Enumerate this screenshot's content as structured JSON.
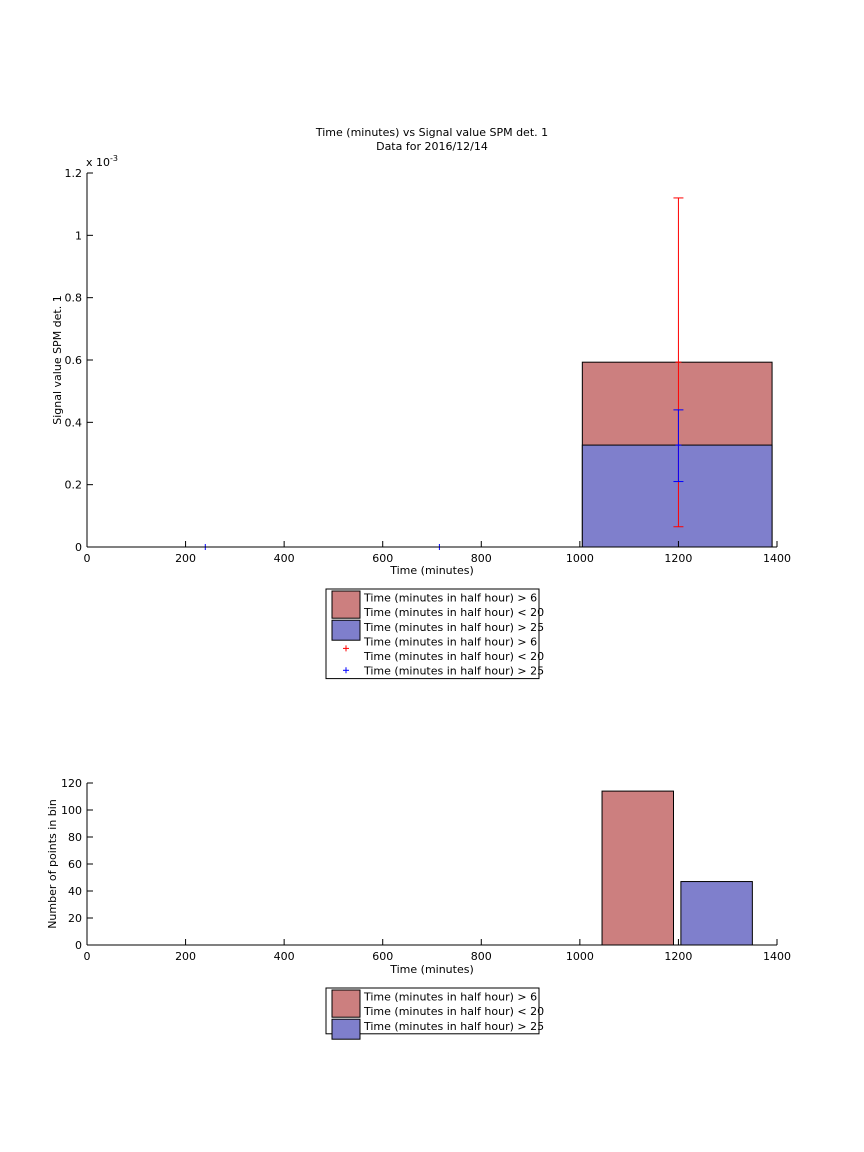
{
  "chart_data": [
    {
      "type": "bar",
      "title": "Time (minutes) vs Signal value SPM det. 1",
      "subtitle": "Data for 2016/12/14",
      "xlabel": "Time (minutes)",
      "ylabel": "Signal value SPM det. 1",
      "y_exponent_label": "x 10",
      "y_exponent_power": "-3",
      "xlim": [
        0,
        1400
      ],
      "ylim": [
        0,
        0.0012
      ],
      "xticks": [
        "0",
        "200",
        "400",
        "600",
        "800",
        "1000",
        "1200",
        "1400"
      ],
      "yticks": [
        "0",
        "0.2",
        "0.4",
        "0.6",
        "0.8",
        "1",
        "1.2"
      ],
      "grid": false,
      "legend_position": "below",
      "bars": [
        {
          "series": "Time (minutes in half hour) > 6\nTime (minutes in half hour) < 20",
          "x_start": 1005,
          "x_end": 1390,
          "value": 0.000593,
          "color": "#cc7f7f"
        },
        {
          "series": "Time (minutes in half hour) > 25",
          "x_start": 1005,
          "x_end": 1390,
          "value": 0.000327,
          "color": "#7f7fcc"
        }
      ],
      "errorbars": [
        {
          "series": "Time (minutes in half hour) > 6\nTime (minutes in half hour) < 20",
          "x": 1200,
          "y": 0.000593,
          "low": 6.5e-05,
          "high": 0.00112,
          "color": "#ff0000"
        },
        {
          "series": "Time (minutes in half hour) > 25",
          "x": 1200,
          "y": 0.000327,
          "low": 0.00021,
          "high": 0.00044,
          "color": "#0000ff"
        }
      ],
      "points": [
        {
          "series": "Time (minutes in half hour) > 25",
          "x": 240,
          "y": 0,
          "color": "#0000ff"
        },
        {
          "series": "Time (minutes in half hour) > 25",
          "x": 715,
          "y": 0,
          "color": "#0000ff"
        }
      ],
      "legend": [
        {
          "kind": "patch",
          "color": "#cc7f7f",
          "lines": [
            "Time (minutes in half hour) > 6",
            "Time (minutes in half hour) < 20"
          ]
        },
        {
          "kind": "patch",
          "color": "#7f7fcc",
          "lines": [
            "Time (minutes in half hour) > 25"
          ]
        },
        {
          "kind": "marker",
          "color": "#ff0000",
          "lines": [
            "Time (minutes in half hour) > 6",
            "Time (minutes in half hour) < 20"
          ]
        },
        {
          "kind": "marker",
          "color": "#0000ff",
          "lines": [
            "Time (minutes in half hour) > 25"
          ]
        }
      ]
    },
    {
      "type": "bar",
      "xlabel": "Time (minutes)",
      "ylabel": "Number of points in bin",
      "xlim": [
        0,
        1400
      ],
      "ylim": [
        0,
        120
      ],
      "xticks": [
        "0",
        "200",
        "400",
        "600",
        "800",
        "1000",
        "1200",
        "1400"
      ],
      "yticks": [
        "0",
        "20",
        "40",
        "60",
        "80",
        "100",
        "120"
      ],
      "grid": false,
      "legend_position": "below",
      "bars": [
        {
          "series": "Time (minutes in half hour) > 6\nTime (minutes in half hour) < 20",
          "x_start": 1045,
          "x_end": 1190,
          "value": 114,
          "color": "#cc7f7f"
        },
        {
          "series": "Time (minutes in half hour) > 25",
          "x_start": 1205,
          "x_end": 1350,
          "value": 47,
          "color": "#7f7fcc"
        }
      ],
      "legend": [
        {
          "kind": "patch",
          "color": "#cc7f7f",
          "lines": [
            "Time (minutes in half hour) > 6",
            "Time (minutes in half hour) < 20"
          ]
        },
        {
          "kind": "patch",
          "color": "#7f7fcc",
          "lines": [
            "Time (minutes in half hour) > 25"
          ]
        }
      ]
    }
  ]
}
